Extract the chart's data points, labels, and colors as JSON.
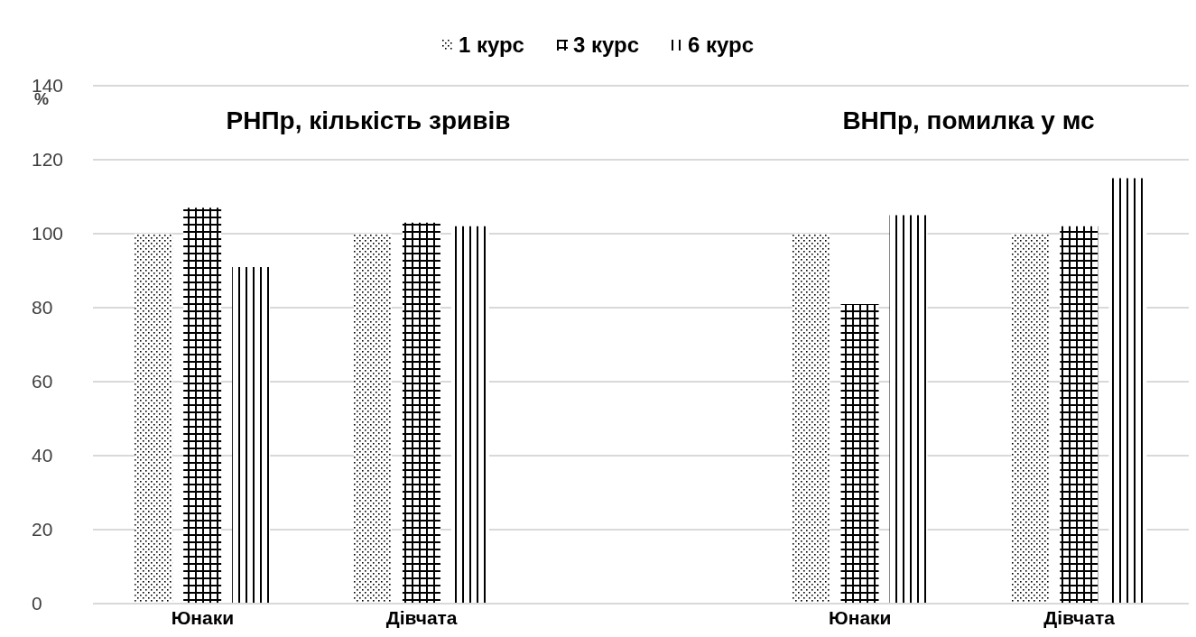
{
  "chart_data": {
    "type": "bar",
    "categories": [
      "Юнаки",
      "Дівчата",
      null,
      "Юнаки",
      "Дівчата"
    ],
    "series": [
      {
        "name": "1 курс",
        "color": "#000000",
        "values": [
          100,
          100,
          null,
          100,
          100
        ]
      },
      {
        "name": "3 курс",
        "color": "#000000",
        "values": [
          107,
          103,
          null,
          81,
          102
        ]
      },
      {
        "name": "6 курс",
        "color": "#000000",
        "values": [
          91,
          102,
          null,
          105,
          115
        ]
      }
    ],
    "ylabel": "%",
    "ylim": [
      0,
      140
    ],
    "yticks": [
      0,
      20,
      40,
      60,
      80,
      100,
      120,
      140
    ],
    "grid": "y",
    "legend": "top",
    "annotations": [
      "РНПр, кількість зривів",
      "ВНПр, помилка у мс"
    ]
  }
}
